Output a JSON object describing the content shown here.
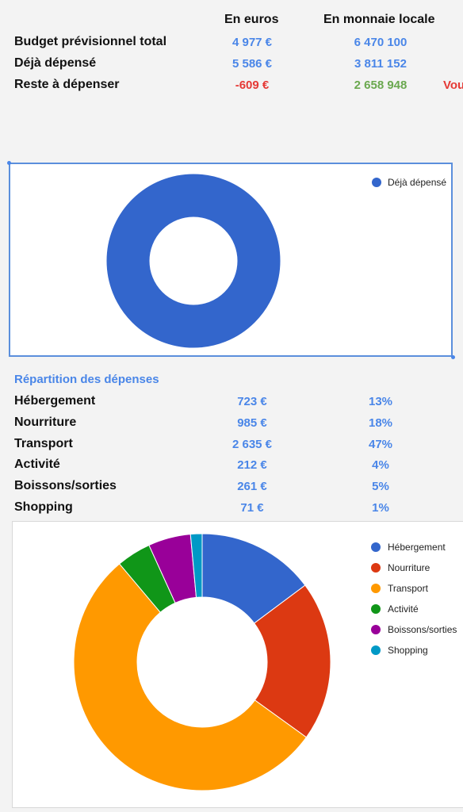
{
  "summary": {
    "col_euros": "En euros",
    "col_local": "En monnaie locale",
    "rows": [
      {
        "label": "Budget prévisionnel total",
        "euros": "4 977 €",
        "local": "6 470 100"
      },
      {
        "label": "Déjà dépensé",
        "euros": "5 586 €",
        "local": "3 811 152"
      },
      {
        "label": "Reste à dépenser",
        "euros": "-609 €",
        "local": "2 658 948"
      }
    ],
    "overflow_text": "Vou"
  },
  "chart1": {
    "legend": "Déjà dépensé"
  },
  "repartition": {
    "title": "Répartition des dépenses",
    "rows": [
      {
        "label": "Hébergement",
        "amount": "723 €",
        "pct": "13%"
      },
      {
        "label": "Nourriture",
        "amount": "985 €",
        "pct": "18%"
      },
      {
        "label": "Transport",
        "amount": "2 635 €",
        "pct": "47%"
      },
      {
        "label": "Activité",
        "amount": "212 €",
        "pct": "4%"
      },
      {
        "label": "Boissons/sorties",
        "amount": "261 €",
        "pct": "5%"
      },
      {
        "label": "Shopping",
        "amount": "71 €",
        "pct": "1%"
      }
    ]
  },
  "chart_data": [
    {
      "type": "pie",
      "categories": [
        "Déjà dépensé"
      ],
      "values": [
        5586
      ],
      "colors": [
        "#3366cc"
      ],
      "donut": true,
      "legend_position": "top-right"
    },
    {
      "type": "pie",
      "categories": [
        "Hébergement",
        "Nourriture",
        "Transport",
        "Activité",
        "Boissons/sorties",
        "Shopping"
      ],
      "values": [
        723,
        985,
        2635,
        212,
        261,
        71
      ],
      "colors": [
        "#3366cc",
        "#dc3912",
        "#ff9900",
        "#109618",
        "#990099",
        "#0099c6"
      ],
      "donut": true,
      "legend_position": "right"
    }
  ]
}
